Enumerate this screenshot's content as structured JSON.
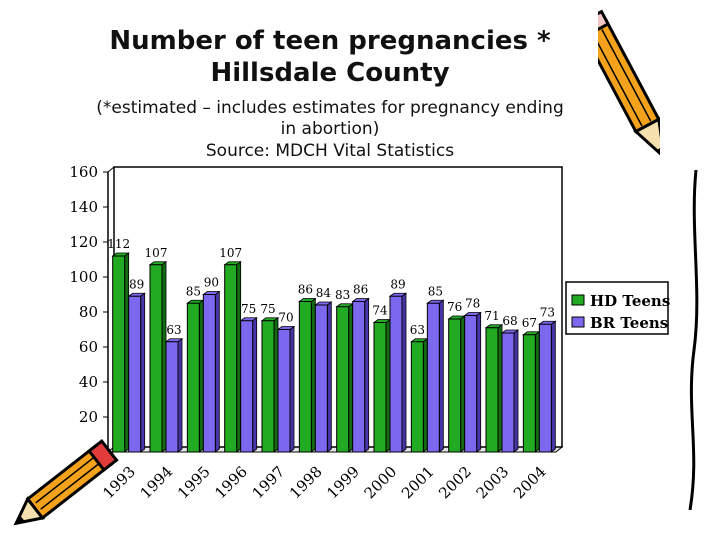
{
  "title": {
    "line1": "Number of teen pregnancies *",
    "line2": "Hillsdale County"
  },
  "subtitle": {
    "line1": "(*estimated – includes estimates for pregnancy ending",
    "line2": "in abortion)",
    "line3": "Source: MDCH Vital Statistics"
  },
  "colors": {
    "hd": "#22aa22",
    "br": "#7b68ee",
    "frame": "#000000"
  },
  "icons": [
    "pencil-icon-top-right",
    "pencil-icon-bottom-left"
  ],
  "chart_data": {
    "type": "bar",
    "categories": [
      "1993",
      "1994",
      "1995",
      "1996",
      "1997",
      "1998",
      "1999",
      "2000",
      "2001",
      "2002",
      "2003",
      "2004"
    ],
    "series": [
      {
        "name": "HD Teens",
        "values": [
          112,
          107,
          85,
          107,
          75,
          86,
          83,
          74,
          63,
          76,
          71,
          67
        ]
      },
      {
        "name": "BR Teens",
        "values": [
          89,
          63,
          90,
          75,
          70,
          84,
          86,
          89,
          85,
          78,
          68,
          73
        ]
      }
    ],
    "ylim": [
      0,
      160
    ],
    "yticks": [
      20,
      40,
      60,
      80,
      100,
      120,
      140,
      160
    ],
    "legend": "right",
    "grid": false,
    "xlabel": "",
    "ylabel": ""
  }
}
